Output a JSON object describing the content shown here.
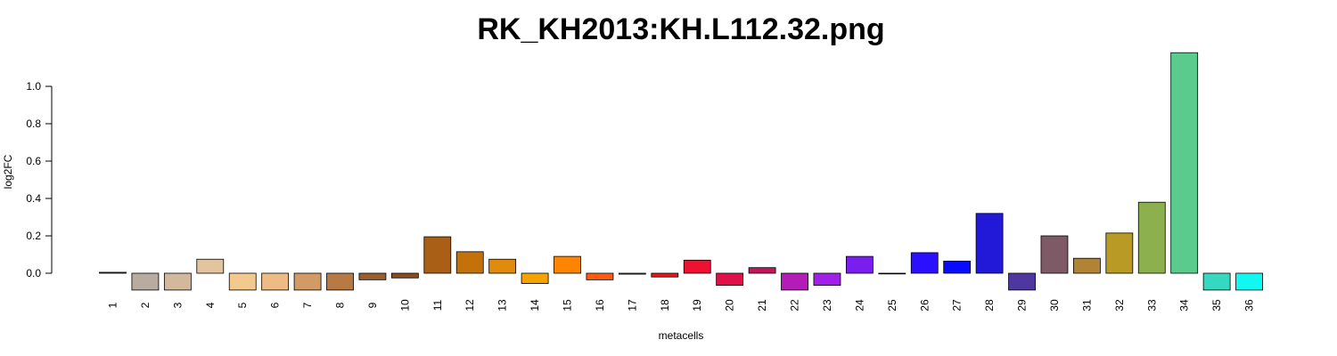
{
  "chart_data": {
    "type": "bar",
    "title": "RK_KH2013:KH.L112.32.png",
    "xlabel": "metacells",
    "ylabel": "log2FC",
    "ylim": [
      -0.09,
      1.18
    ],
    "yticks": [
      0.0,
      0.2,
      0.4,
      0.6,
      0.8,
      1.0
    ],
    "ytick_labels": [
      "0.0",
      "0.2",
      "0.4",
      "0.6",
      "0.8",
      "1.0"
    ],
    "grid": false,
    "legend": "none",
    "categories": [
      "1",
      "2",
      "3",
      "4",
      "5",
      "6",
      "7",
      "8",
      "9",
      "10",
      "11",
      "12",
      "13",
      "14",
      "15",
      "16",
      "17",
      "18",
      "19",
      "20",
      "21",
      "22",
      "23",
      "24",
      "25",
      "26",
      "27",
      "28",
      "29",
      "30",
      "31",
      "32",
      "33",
      "34",
      "35",
      "36"
    ],
    "values": [
      0.005,
      -0.09,
      -0.09,
      0.075,
      -0.09,
      -0.09,
      -0.09,
      -0.09,
      -0.035,
      -0.025,
      0.195,
      0.115,
      0.075,
      -0.055,
      0.09,
      -0.035,
      -0.005,
      -0.02,
      0.07,
      -0.065,
      0.03,
      -0.09,
      -0.065,
      0.09,
      -0.003,
      0.11,
      0.065,
      0.32,
      -0.09,
      0.2,
      0.08,
      0.215,
      0.38,
      1.18,
      -0.09,
      -0.09
    ],
    "colors": [
      "#5b5b5b",
      "#b8ab9f",
      "#d2b99b",
      "#e2c49f",
      "#f4c990",
      "#edbc84",
      "#d29a65",
      "#b77a44",
      "#9a5f31",
      "#8a4b1e",
      "#aa5f16",
      "#c4710c",
      "#e08b0b",
      "#f5a300",
      "#ff8400",
      "#ff5a12",
      "#aa5522",
      "#e81818",
      "#f01030",
      "#e0104a",
      "#c4145c",
      "#b41cb8",
      "#a020e8",
      "#7a1ef0",
      "#6428e8",
      "#2a10ff",
      "#0a0aff",
      "#2218d8",
      "#4e38a0",
      "#7e5a66",
      "#b08434",
      "#b89a24",
      "#8cb04e",
      "#5acb8c",
      "#36d8c0",
      "#10f8f0"
    ]
  }
}
